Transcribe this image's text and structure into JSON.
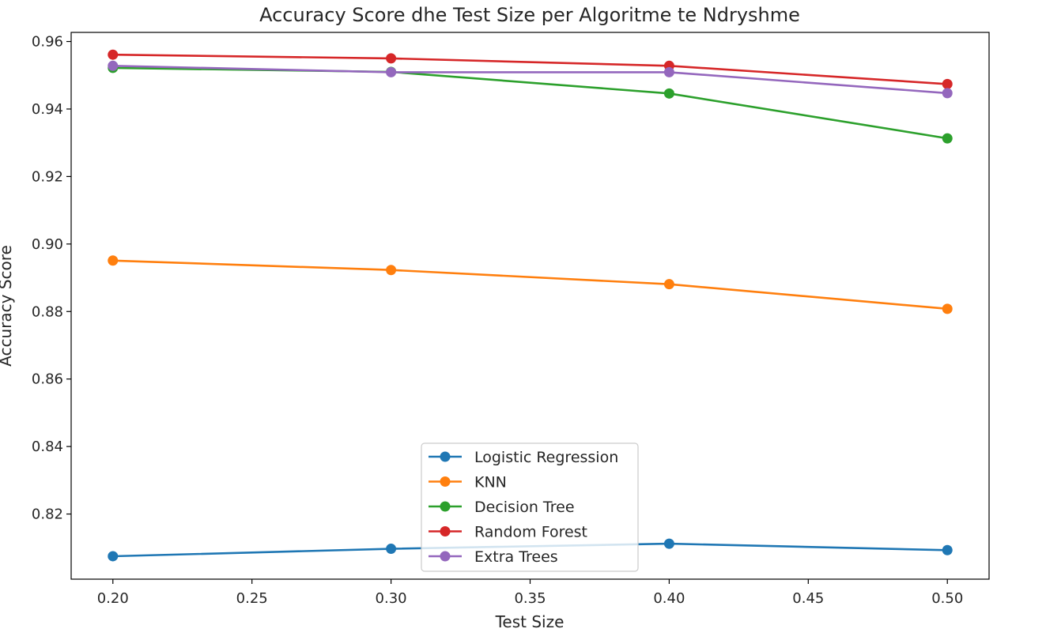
{
  "chart_data": {
    "type": "line",
    "title": "Accuracy Score dhe Test Size per Algoritme te Ndryshme",
    "xlabel": "Test Size",
    "ylabel": "Accuracy Score",
    "x": [
      0.2,
      0.3,
      0.4,
      0.5
    ],
    "xlim": [
      0.185,
      0.515
    ],
    "ylim": [
      0.8007,
      0.9627
    ],
    "xticks": [
      0.2,
      0.25,
      0.3,
      0.35,
      0.4,
      0.45,
      0.5
    ],
    "xtick_labels": [
      "0.20",
      "0.25",
      "0.30",
      "0.35",
      "0.40",
      "0.45",
      "0.50"
    ],
    "yticks": [
      0.82,
      0.84,
      0.86,
      0.88,
      0.9,
      0.92,
      0.94,
      0.96
    ],
    "ytick_labels": [
      "0.82",
      "0.84",
      "0.86",
      "0.88",
      "0.90",
      "0.92",
      "0.94",
      "0.96"
    ],
    "grid": false,
    "legend_position": "lower-center",
    "series": [
      {
        "name": "Logistic Regression",
        "color": "#1f77b4",
        "values": [
          0.8075,
          0.8097,
          0.8112,
          0.8093
        ]
      },
      {
        "name": "KNN",
        "color": "#ff7f0e",
        "values": [
          0.8951,
          0.8923,
          0.8881,
          0.8808
        ]
      },
      {
        "name": "Decision Tree",
        "color": "#2ca02c",
        "values": [
          0.9522,
          0.951,
          0.9446,
          0.9313
        ]
      },
      {
        "name": "Random Forest",
        "color": "#d62728",
        "values": [
          0.9561,
          0.955,
          0.9528,
          0.9474
        ]
      },
      {
        "name": "Extra Trees",
        "color": "#9467bd",
        "values": [
          0.9528,
          0.9509,
          0.9509,
          0.9447
        ]
      }
    ]
  }
}
